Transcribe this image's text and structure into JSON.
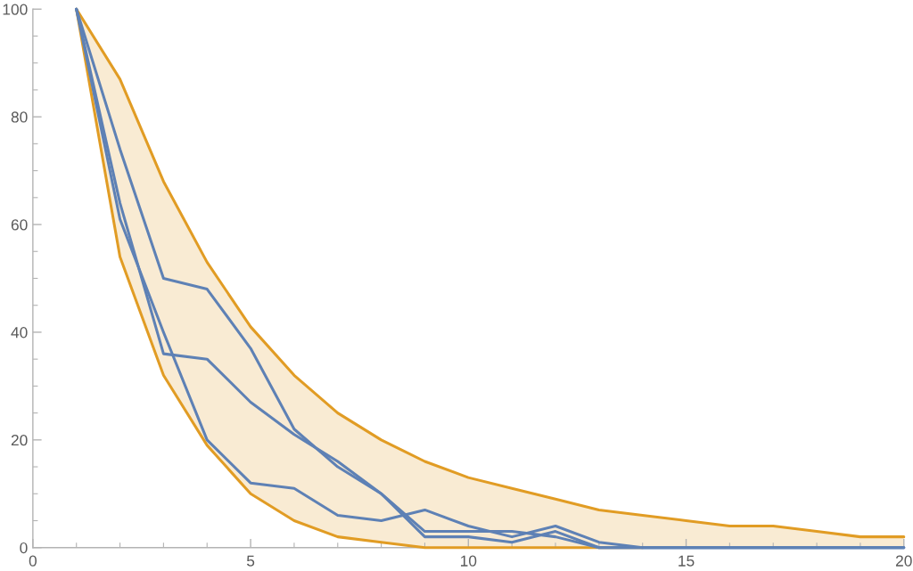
{
  "chart_data": {
    "type": "line",
    "x": [
      1,
      2,
      3,
      4,
      5,
      6,
      7,
      8,
      9,
      10,
      11,
      12,
      13,
      14,
      15,
      16,
      17,
      18,
      19,
      20
    ],
    "series": [
      {
        "color": "#e19c24",
        "values": [
          100,
          87,
          68,
          53,
          41,
          32,
          25,
          20,
          16,
          13,
          11,
          9,
          7,
          6,
          5,
          4,
          4,
          3,
          2,
          2
        ],
        "lower": [
          100,
          54,
          32,
          19,
          10,
          5,
          2,
          1,
          0,
          0,
          0,
          0,
          0,
          0,
          0,
          0,
          0,
          0,
          0,
          0
        ],
        "upper": [
          100,
          87,
          68,
          53,
          41,
          32,
          25,
          20,
          16,
          13,
          11,
          9,
          7,
          6,
          5,
          4,
          4,
          3,
          2,
          2
        ]
      },
      {
        "color": "#e19c24",
        "values": [
          100,
          54,
          32,
          19,
          10,
          5,
          2,
          1,
          0,
          0,
          0,
          0,
          0,
          0,
          null,
          null,
          null,
          null,
          null,
          null
        ]
      },
      {
        "color": "#5e81b5",
        "values": [
          100,
          74,
          50,
          48,
          37,
          22,
          15,
          10,
          3,
          3,
          3,
          2,
          0,
          0,
          0,
          0,
          0,
          0,
          0,
          0
        ]
      },
      {
        "color": "#5e81b5",
        "values": [
          100,
          64,
          36,
          35,
          27,
          21,
          16,
          10,
          2,
          2,
          1,
          3,
          0,
          0,
          0,
          0,
          0,
          0,
          0,
          0
        ]
      },
      {
        "color": "#5e81b5",
        "values": [
          100,
          61,
          40,
          20,
          12,
          11,
          6,
          5,
          7,
          4,
          2,
          4,
          1,
          0,
          0,
          0,
          0,
          0,
          0,
          0
        ]
      }
    ],
    "xlim": [
      0,
      20
    ],
    "ylim": [
      0,
      100
    ],
    "xticks": [
      0,
      {
        "value": 1,
        "label": null
      },
      {
        "value": 2,
        "label": null
      },
      {
        "value": 3,
        "label": null
      },
      {
        "value": 4,
        "label": null
      },
      5,
      {
        "value": 6,
        "label": null
      },
      {
        "value": 7,
        "label": null
      },
      {
        "value": 8,
        "label": null
      },
      {
        "value": 9,
        "label": null
      },
      10,
      {
        "value": 11,
        "label": null
      },
      {
        "value": 12,
        "label": null
      },
      {
        "value": 13,
        "label": null
      },
      {
        "value": 14,
        "label": null
      },
      15,
      {
        "value": 16,
        "label": null
      },
      {
        "value": 17,
        "label": null
      },
      {
        "value": 18,
        "label": null
      },
      {
        "value": 19,
        "label": null
      },
      20
    ],
    "yticks": [
      0,
      {
        "value": 5,
        "label": null
      },
      {
        "value": 10,
        "label": null
      },
      {
        "value": 15,
        "label": null
      },
      20,
      {
        "value": 25,
        "label": null
      },
      {
        "value": 30,
        "label": null
      },
      {
        "value": 35,
        "label": null
      },
      40,
      {
        "value": 45,
        "label": null
      },
      {
        "value": 50,
        "label": null
      },
      {
        "value": 55,
        "label": null
      },
      60,
      {
        "value": 65,
        "label": null
      },
      {
        "value": 70,
        "label": null
      },
      {
        "value": 75,
        "label": null
      },
      80,
      {
        "value": 85,
        "label": null
      },
      {
        "value": 90,
        "label": null
      },
      {
        "value": 95,
        "label": null
      },
      100
    ]
  }
}
